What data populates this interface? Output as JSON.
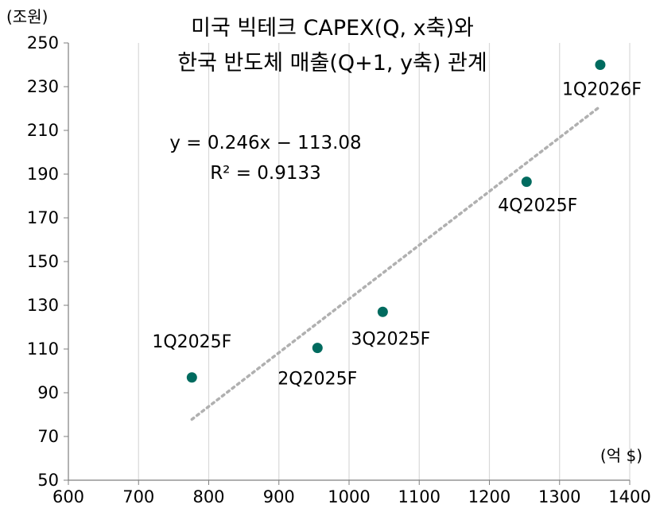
{
  "chart_data": {
    "type": "scatter",
    "title_line1": "미국 빅테크 CAPEX(Q, x축)와",
    "title_line2": "한국 반도체 매출(Q+1, y축) 관계",
    "ylabel": "(조원)",
    "xlabel": "(억 $)",
    "xlim": [
      600,
      1400
    ],
    "ylim": [
      50,
      250
    ],
    "x_ticks": [
      600,
      700,
      800,
      900,
      1000,
      1100,
      1200,
      1300,
      1400
    ],
    "y_ticks": [
      50,
      70,
      90,
      110,
      130,
      150,
      170,
      190,
      210,
      230,
      250
    ],
    "grid": "vertical",
    "points": [
      {
        "label": "1Q2025F",
        "x": 776,
        "y": 97
      },
      {
        "label": "2Q2025F",
        "x": 955,
        "y": 110.5
      },
      {
        "label": "3Q2025F",
        "x": 1048,
        "y": 127
      },
      {
        "label": "4Q2025F",
        "x": 1253,
        "y": 186.5
      },
      {
        "label": "1Q2026F",
        "x": 1358,
        "y": 240
      }
    ],
    "trendline": {
      "slope": 0.246,
      "intercept": -113.08,
      "x_range": [
        776,
        1358
      ]
    },
    "equation": "y = 0.246x − 113.08",
    "r_squared": "R² = 0.9133",
    "point_color": "#006b5f",
    "trend_color": "#b0b0b0"
  }
}
